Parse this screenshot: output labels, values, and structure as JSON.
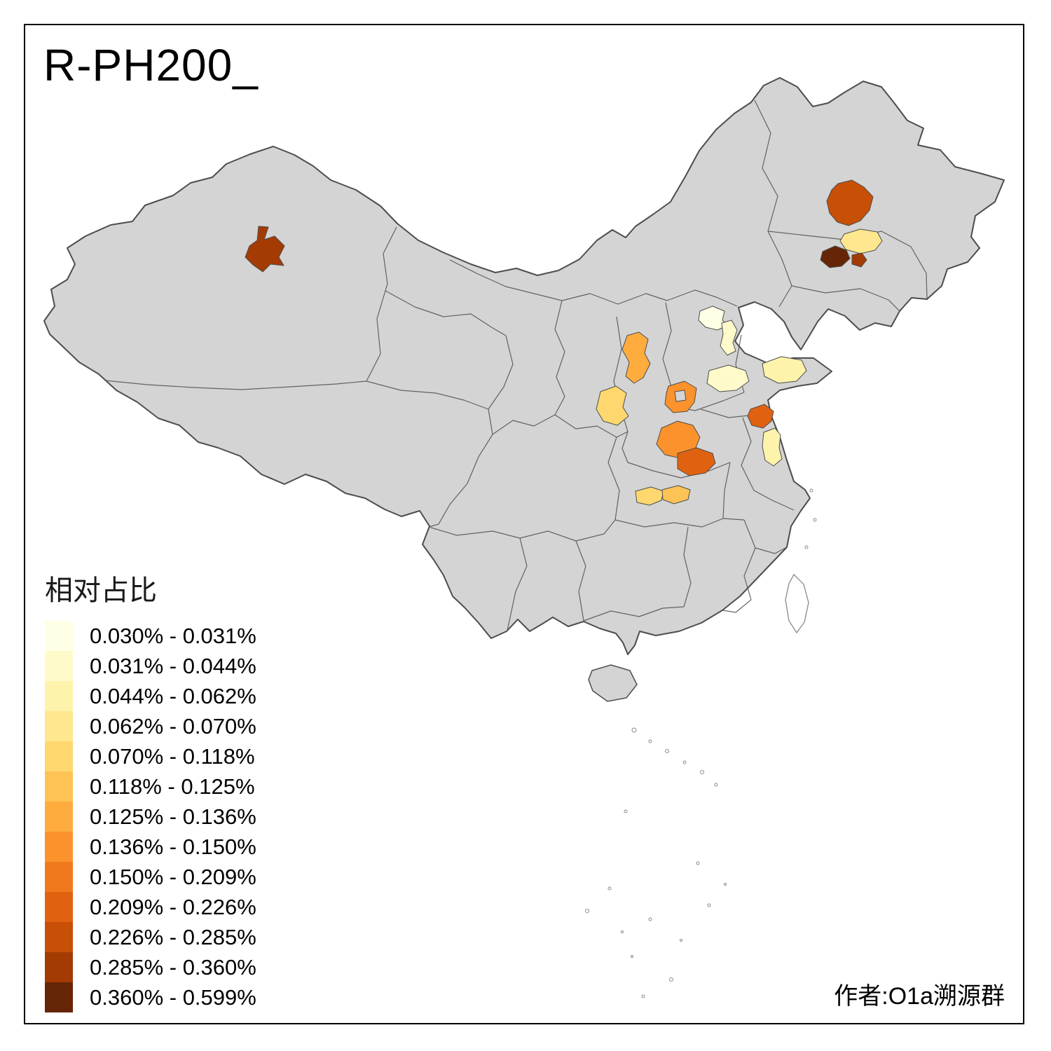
{
  "title": "R-PH200_",
  "attribution": "作者:O1a溯源群",
  "legend": {
    "title": "相对占比",
    "classes": [
      {
        "label": "0.030% - 0.031%",
        "color": "#FFFFE5"
      },
      {
        "label": "0.031% - 0.044%",
        "color": "#FFFAC9"
      },
      {
        "label": "0.044% - 0.062%",
        "color": "#FEF3AB"
      },
      {
        "label": "0.062% - 0.070%",
        "color": "#FEE78E"
      },
      {
        "label": "0.070% - 0.118%",
        "color": "#FED86F"
      },
      {
        "label": "0.118% - 0.125%",
        "color": "#FEC355"
      },
      {
        "label": "0.125% - 0.136%",
        "color": "#FEAC3E"
      },
      {
        "label": "0.136% - 0.150%",
        "color": "#FB922C"
      },
      {
        "label": "0.150% - 0.209%",
        "color": "#F0791D"
      },
      {
        "label": "0.209% - 0.226%",
        "color": "#E06210"
      },
      {
        "label": "0.226% - 0.285%",
        "color": "#C84F06"
      },
      {
        "label": "0.285% - 0.360%",
        "color": "#A33B03"
      },
      {
        "label": "0.360% - 0.599%",
        "color": "#662506"
      }
    ]
  },
  "map": {
    "land_color": "#D4D4D4",
    "border_color": "#4D4D4D",
    "island_outline_color": "#8A8A8A",
    "sea_color": "#FFFFFF"
  }
}
